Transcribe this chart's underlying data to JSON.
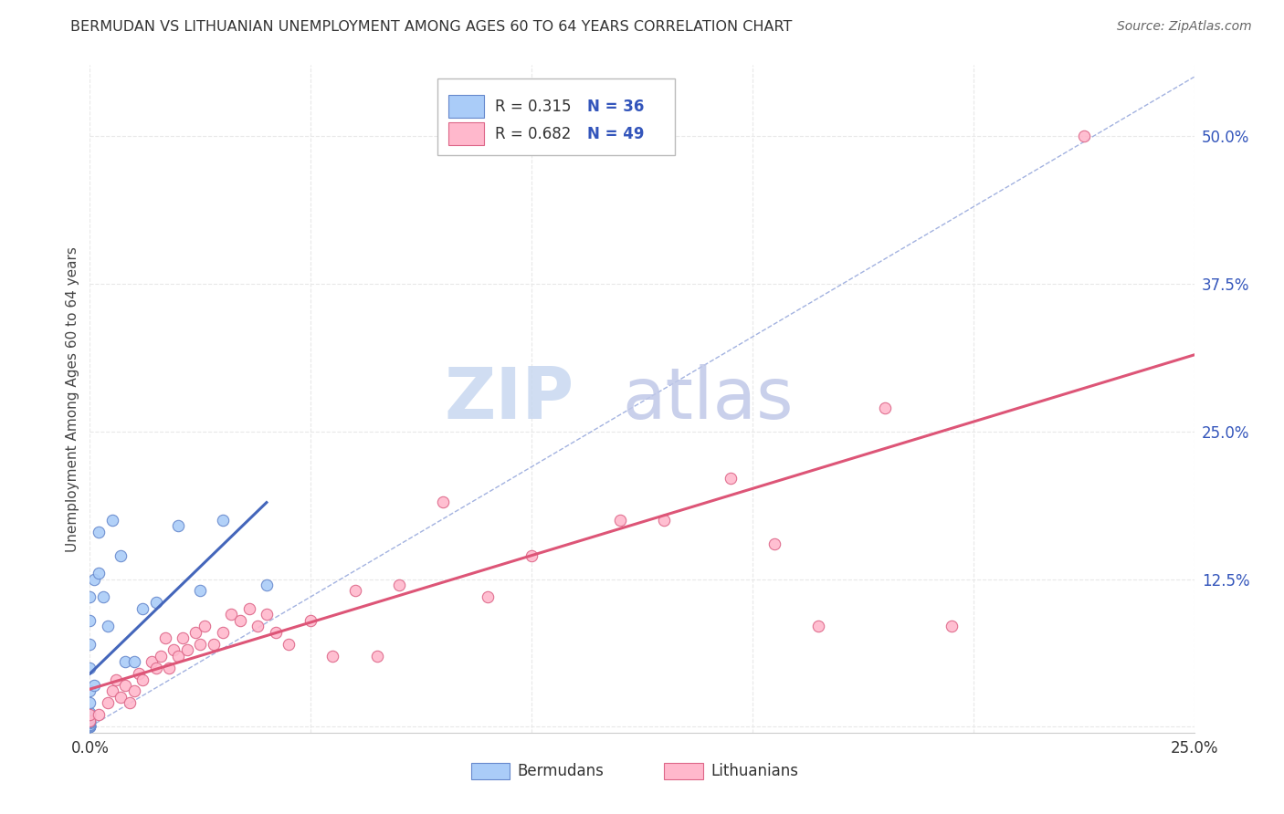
{
  "title": "BERMUDAN VS LITHUANIAN UNEMPLOYMENT AMONG AGES 60 TO 64 YEARS CORRELATION CHART",
  "source": "Source: ZipAtlas.com",
  "ylabel": "Unemployment Among Ages 60 to 64 years",
  "xlim": [
    0.0,
    0.25
  ],
  "ylim": [
    -0.005,
    0.56
  ],
  "xticks": [
    0.0,
    0.05,
    0.1,
    0.15,
    0.2,
    0.25
  ],
  "xticklabels": [
    "0.0%",
    "",
    "",
    "",
    "",
    "25.0%"
  ],
  "yticks": [
    0.0,
    0.125,
    0.25,
    0.375,
    0.5
  ],
  "yticklabels": [
    "",
    "12.5%",
    "25.0%",
    "37.5%",
    "50.0%"
  ],
  "legend_R_bermuda": "0.315",
  "legend_N_bermuda": "36",
  "legend_R_lithuania": "0.682",
  "legend_N_lithuania": "49",
  "bermuda_color": "#aaccf8",
  "bermuda_edge_color": "#6688cc",
  "lithuania_color": "#ffb8cc",
  "lithuania_edge_color": "#dd6688",
  "bermuda_trend_color": "#4466bb",
  "lithuania_trend_color": "#dd5577",
  "diagonal_color": "#99aadd",
  "background_color": "#ffffff",
  "grid_color": "#e8e8e8",
  "legend_text_color": "#3355bb",
  "ytick_color": "#3355bb",
  "bermuda_x": [
    0.0,
    0.0,
    0.0,
    0.0,
    0.0,
    0.0,
    0.0,
    0.0,
    0.0,
    0.0,
    0.0,
    0.0,
    0.0,
    0.0,
    0.0,
    0.0,
    0.0,
    0.0,
    0.0,
    0.0,
    0.001,
    0.001,
    0.002,
    0.002,
    0.003,
    0.004,
    0.005,
    0.007,
    0.008,
    0.01,
    0.012,
    0.015,
    0.02,
    0.025,
    0.03,
    0.04
  ],
  "bermuda_y": [
    0.0,
    0.0,
    0.0,
    0.0,
    0.0,
    0.001,
    0.002,
    0.003,
    0.004,
    0.005,
    0.006,
    0.008,
    0.01,
    0.012,
    0.02,
    0.03,
    0.05,
    0.07,
    0.09,
    0.11,
    0.035,
    0.125,
    0.13,
    0.165,
    0.11,
    0.085,
    0.175,
    0.145,
    0.055,
    0.055,
    0.1,
    0.105,
    0.17,
    0.115,
    0.175,
    0.12
  ],
  "lithuania_x": [
    0.0,
    0.0,
    0.002,
    0.004,
    0.005,
    0.006,
    0.007,
    0.008,
    0.009,
    0.01,
    0.011,
    0.012,
    0.014,
    0.015,
    0.016,
    0.017,
    0.018,
    0.019,
    0.02,
    0.021,
    0.022,
    0.024,
    0.025,
    0.026,
    0.028,
    0.03,
    0.032,
    0.034,
    0.036,
    0.038,
    0.04,
    0.042,
    0.045,
    0.05,
    0.055,
    0.06,
    0.065,
    0.07,
    0.08,
    0.09,
    0.1,
    0.12,
    0.13,
    0.145,
    0.155,
    0.165,
    0.18,
    0.195,
    0.225
  ],
  "lithuania_y": [
    0.005,
    0.01,
    0.01,
    0.02,
    0.03,
    0.04,
    0.025,
    0.035,
    0.02,
    0.03,
    0.045,
    0.04,
    0.055,
    0.05,
    0.06,
    0.075,
    0.05,
    0.065,
    0.06,
    0.075,
    0.065,
    0.08,
    0.07,
    0.085,
    0.07,
    0.08,
    0.095,
    0.09,
    0.1,
    0.085,
    0.095,
    0.08,
    0.07,
    0.09,
    0.06,
    0.115,
    0.06,
    0.12,
    0.19,
    0.11,
    0.145,
    0.175,
    0.175,
    0.21,
    0.155,
    0.085,
    0.27,
    0.085,
    0.5
  ]
}
